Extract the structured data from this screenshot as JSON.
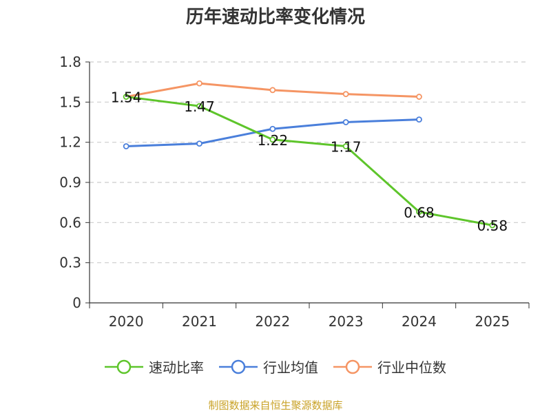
{
  "chart_data": {
    "type": "line",
    "title": "历年速动比率变化情况",
    "categories": [
      "2020",
      "2021",
      "2022",
      "2023",
      "2024",
      "2025"
    ],
    "yticks": [
      "0",
      "0.3",
      "0.6",
      "0.9",
      "1.2",
      "1.5",
      "1.8"
    ],
    "ylim": [
      0,
      1.8
    ],
    "grid": true,
    "legend_position": "bottom",
    "series": [
      {
        "name": "速动比率",
        "color": "#5ec52b",
        "values": [
          1.54,
          1.47,
          1.22,
          1.17,
          0.68,
          0.58
        ],
        "labels": [
          "1.54",
          "1.47",
          "1.22",
          "1.17",
          "0.68",
          "0.58"
        ],
        "show_labels": true
      },
      {
        "name": "行业均值",
        "color": "#4a7fdb",
        "values": [
          1.17,
          1.19,
          1.3,
          1.35,
          1.37,
          null
        ],
        "show_labels": false
      },
      {
        "name": "行业中位数",
        "color": "#f59564",
        "values": [
          1.54,
          1.64,
          1.59,
          1.56,
          1.54,
          null
        ],
        "show_labels": false
      }
    ]
  },
  "source": "制图数据来自恒生聚源数据库"
}
